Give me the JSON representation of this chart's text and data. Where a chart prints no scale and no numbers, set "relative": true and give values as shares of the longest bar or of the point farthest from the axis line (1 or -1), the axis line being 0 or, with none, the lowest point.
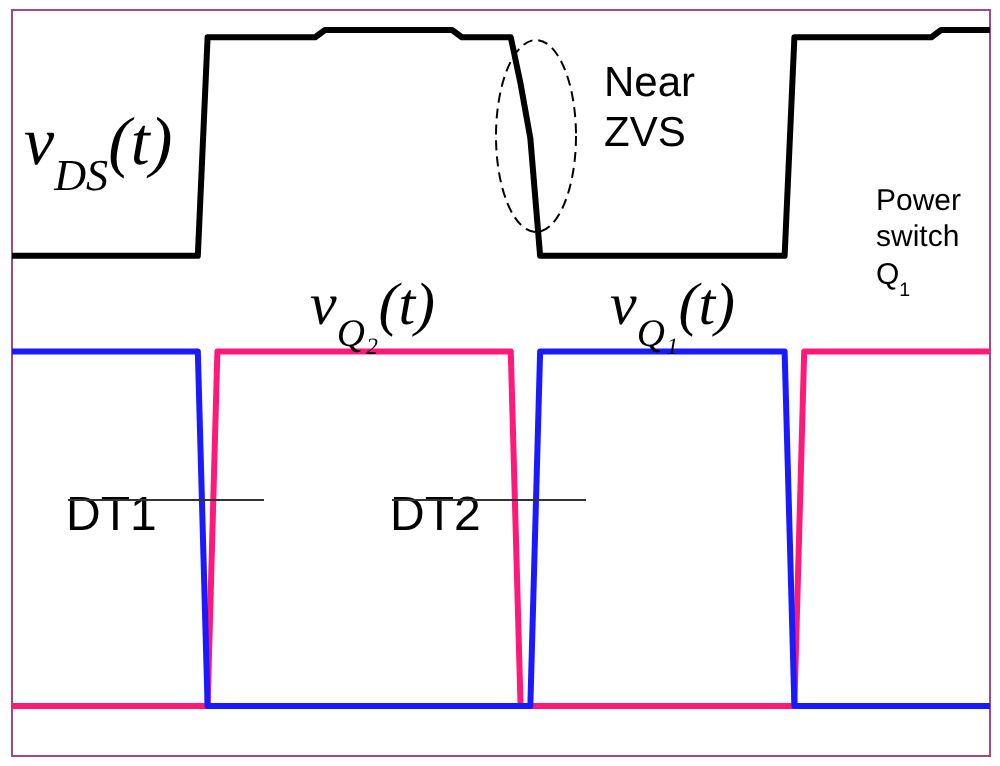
{
  "chart_data": {
    "type": "line",
    "relative": true,
    "categories": [
      null,
      null,
      null,
      null,
      null,
      null,
      null,
      null,
      null,
      null,
      null,
      null,
      null,
      null,
      null,
      null,
      null,
      null,
      null,
      null,
      null,
      null,
      null,
      null,
      null,
      null,
      null,
      null,
      null,
      null,
      null,
      null,
      null,
      null,
      null,
      null,
      null,
      null,
      null,
      null,
      null,
      null,
      null,
      null,
      null,
      null,
      null,
      null,
      null,
      null,
      null,
      null,
      null,
      null,
      null,
      null,
      null,
      null,
      null,
      null,
      null,
      null,
      null,
      null,
      null,
      null,
      null,
      null,
      null,
      null,
      null,
      null,
      null,
      null,
      null,
      null,
      null,
      null,
      null,
      null,
      null,
      null,
      null,
      null,
      null,
      null,
      null,
      null,
      null,
      null,
      null,
      null,
      null,
      null,
      null,
      null,
      null,
      null,
      null,
      null,
      null
    ],
    "marker": "none",
    "line_style": "solid",
    "series": [
      {
        "name": "v$_{DS}$(t)",
        "color": "#000000",
        "values": [
          0.689,
          0.689,
          0.689,
          0.689,
          0.689,
          0.689,
          0.689,
          0.689,
          0.689,
          0.689,
          0.689,
          0.689,
          0.689,
          0.689,
          0.689,
          0.689,
          0.689,
          0.689,
          0.689,
          0.689,
          0.99,
          0.99,
          0.99,
          0.99,
          0.99,
          0.99,
          0.99,
          0.99,
          0.99,
          0.99,
          0.99,
          0.99,
          1,
          1,
          1,
          1,
          1,
          1,
          1,
          1,
          1,
          1,
          1,
          1,
          1,
          1,
          0.99,
          0.99,
          0.99,
          0.99,
          0.99,
          0.99,
          0.926,
          0.851,
          0.689,
          0.689,
          0.689,
          0.689,
          0.689,
          0.689,
          0.689,
          0.689,
          0.689,
          0.689,
          0.689,
          0.689,
          0.689,
          0.689,
          0.689,
          0.689,
          0.689,
          0.689,
          0.689,
          0.689,
          0.689,
          0.689,
          0.689,
          0.689,
          0.689,
          0.689,
          0.99,
          0.99,
          0.99,
          0.99,
          0.99,
          0.99,
          0.99,
          0.99,
          0.99,
          0.99,
          0.99,
          0.99,
          0.99,
          0.99,
          0.99,
          1,
          1,
          1,
          1,
          1,
          1
        ]
      },
      {
        "name": "v$_{Q₂}$(t)",
        "color": "#ff1a7a",
        "values": [
          0.069,
          0.069,
          0.069,
          0.069,
          0.069,
          0.069,
          0.069,
          0.069,
          0.069,
          0.069,
          0.069,
          0.069,
          0.069,
          0.069,
          0.069,
          0.069,
          0.069,
          0.069,
          0.069,
          0.069,
          0.069,
          0.557,
          0.557,
          0.557,
          0.557,
          0.557,
          0.557,
          0.557,
          0.557,
          0.557,
          0.557,
          0.557,
          0.557,
          0.557,
          0.557,
          0.557,
          0.557,
          0.557,
          0.557,
          0.557,
          0.557,
          0.557,
          0.557,
          0.557,
          0.557,
          0.557,
          0.557,
          0.557,
          0.557,
          0.557,
          0.557,
          0.557,
          0.069,
          0.069,
          0.069,
          0.069,
          0.069,
          0.069,
          0.069,
          0.069,
          0.069,
          0.069,
          0.069,
          0.069,
          0.069,
          0.069,
          0.069,
          0.069,
          0.069,
          0.069,
          0.069,
          0.069,
          0.069,
          0.069,
          0.069,
          0.069,
          0.069,
          0.069,
          0.069,
          0.069,
          0.069,
          0.557,
          0.557,
          0.557,
          0.557,
          0.557,
          0.557,
          0.557,
          0.557,
          0.557,
          0.557,
          0.557,
          0.557,
          0.557,
          0.557,
          0.557,
          0.557,
          0.557,
          0.557,
          0.557,
          0.557
        ]
      },
      {
        "name": "v$_{Q₁}$(t)",
        "color": "#1a1aff",
        "values": [
          0.557,
          0.557,
          0.557,
          0.557,
          0.557,
          0.557,
          0.557,
          0.557,
          0.557,
          0.557,
          0.557,
          0.557,
          0.557,
          0.557,
          0.557,
          0.557,
          0.557,
          0.557,
          0.557,
          0.557,
          0.069,
          0.069,
          0.069,
          0.069,
          0.069,
          0.069,
          0.069,
          0.069,
          0.069,
          0.069,
          0.069,
          0.069,
          0.069,
          0.069,
          0.069,
          0.069,
          0.069,
          0.069,
          0.069,
          0.069,
          0.069,
          0.069,
          0.069,
          0.069,
          0.069,
          0.069,
          0.069,
          0.069,
          0.069,
          0.069,
          0.069,
          0.069,
          0.069,
          0.069,
          0.557,
          0.557,
          0.557,
          0.557,
          0.557,
          0.557,
          0.557,
          0.557,
          0.557,
          0.557,
          0.557,
          0.557,
          0.557,
          0.557,
          0.557,
          0.557,
          0.557,
          0.557,
          0.557,
          0.557,
          0.557,
          0.557,
          0.557,
          0.557,
          0.557,
          0.557,
          0.069,
          0.069,
          0.069,
          0.069,
          0.069,
          0.069,
          0.069,
          0.069,
          0.069,
          0.069,
          0.069,
          0.069,
          0.069,
          0.069,
          0.069,
          0.069,
          0.069,
          0.069,
          0.069,
          0.069,
          0.069
        ]
      }
    ],
    "annotations": [
      "Near ZVS",
      "Power switch Q$_{1}$",
      "DT1",
      "DT2"
    ]
  }
}
